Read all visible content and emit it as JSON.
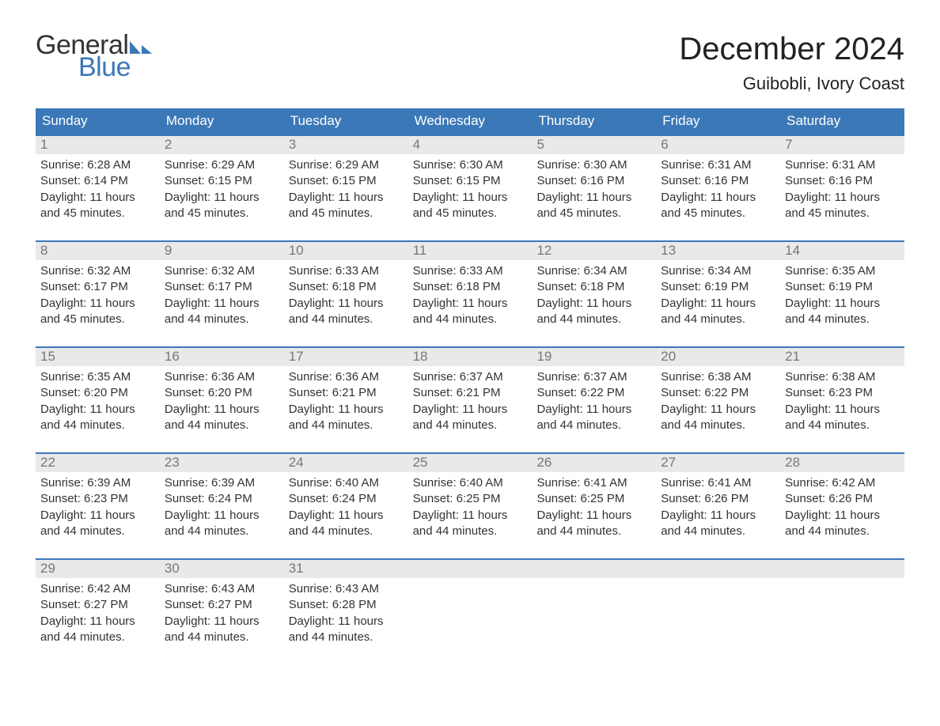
{
  "logo": {
    "general": "General",
    "blue": "Blue",
    "shape_color": "#3b78b8"
  },
  "title": "December 2024",
  "location": "Guibobli, Ivory Coast",
  "colors": {
    "header_bg": "#3b78b8",
    "header_text": "#ffffff",
    "daynum_bg": "#e9e9e9",
    "daynum_text": "#777777",
    "body_text": "#333333",
    "week_border": "#3b78b8",
    "page_bg": "#ffffff"
  },
  "typography": {
    "title_fontsize": 40,
    "location_fontsize": 22,
    "dow_fontsize": 17,
    "daynum_fontsize": 17,
    "body_fontsize": 15,
    "logo_fontsize": 34
  },
  "days_of_week": [
    "Sunday",
    "Monday",
    "Tuesday",
    "Wednesday",
    "Thursday",
    "Friday",
    "Saturday"
  ],
  "weeks": [
    [
      {
        "n": "1",
        "sunrise": "Sunrise: 6:28 AM",
        "sunset": "Sunset: 6:14 PM",
        "d1": "Daylight: 11 hours",
        "d2": "and 45 minutes."
      },
      {
        "n": "2",
        "sunrise": "Sunrise: 6:29 AM",
        "sunset": "Sunset: 6:15 PM",
        "d1": "Daylight: 11 hours",
        "d2": "and 45 minutes."
      },
      {
        "n": "3",
        "sunrise": "Sunrise: 6:29 AM",
        "sunset": "Sunset: 6:15 PM",
        "d1": "Daylight: 11 hours",
        "d2": "and 45 minutes."
      },
      {
        "n": "4",
        "sunrise": "Sunrise: 6:30 AM",
        "sunset": "Sunset: 6:15 PM",
        "d1": "Daylight: 11 hours",
        "d2": "and 45 minutes."
      },
      {
        "n": "5",
        "sunrise": "Sunrise: 6:30 AM",
        "sunset": "Sunset: 6:16 PM",
        "d1": "Daylight: 11 hours",
        "d2": "and 45 minutes."
      },
      {
        "n": "6",
        "sunrise": "Sunrise: 6:31 AM",
        "sunset": "Sunset: 6:16 PM",
        "d1": "Daylight: 11 hours",
        "d2": "and 45 minutes."
      },
      {
        "n": "7",
        "sunrise": "Sunrise: 6:31 AM",
        "sunset": "Sunset: 6:16 PM",
        "d1": "Daylight: 11 hours",
        "d2": "and 45 minutes."
      }
    ],
    [
      {
        "n": "8",
        "sunrise": "Sunrise: 6:32 AM",
        "sunset": "Sunset: 6:17 PM",
        "d1": "Daylight: 11 hours",
        "d2": "and 45 minutes."
      },
      {
        "n": "9",
        "sunrise": "Sunrise: 6:32 AM",
        "sunset": "Sunset: 6:17 PM",
        "d1": "Daylight: 11 hours",
        "d2": "and 44 minutes."
      },
      {
        "n": "10",
        "sunrise": "Sunrise: 6:33 AM",
        "sunset": "Sunset: 6:18 PM",
        "d1": "Daylight: 11 hours",
        "d2": "and 44 minutes."
      },
      {
        "n": "11",
        "sunrise": "Sunrise: 6:33 AM",
        "sunset": "Sunset: 6:18 PM",
        "d1": "Daylight: 11 hours",
        "d2": "and 44 minutes."
      },
      {
        "n": "12",
        "sunrise": "Sunrise: 6:34 AM",
        "sunset": "Sunset: 6:18 PM",
        "d1": "Daylight: 11 hours",
        "d2": "and 44 minutes."
      },
      {
        "n": "13",
        "sunrise": "Sunrise: 6:34 AM",
        "sunset": "Sunset: 6:19 PM",
        "d1": "Daylight: 11 hours",
        "d2": "and 44 minutes."
      },
      {
        "n": "14",
        "sunrise": "Sunrise: 6:35 AM",
        "sunset": "Sunset: 6:19 PM",
        "d1": "Daylight: 11 hours",
        "d2": "and 44 minutes."
      }
    ],
    [
      {
        "n": "15",
        "sunrise": "Sunrise: 6:35 AM",
        "sunset": "Sunset: 6:20 PM",
        "d1": "Daylight: 11 hours",
        "d2": "and 44 minutes."
      },
      {
        "n": "16",
        "sunrise": "Sunrise: 6:36 AM",
        "sunset": "Sunset: 6:20 PM",
        "d1": "Daylight: 11 hours",
        "d2": "and 44 minutes."
      },
      {
        "n": "17",
        "sunrise": "Sunrise: 6:36 AM",
        "sunset": "Sunset: 6:21 PM",
        "d1": "Daylight: 11 hours",
        "d2": "and 44 minutes."
      },
      {
        "n": "18",
        "sunrise": "Sunrise: 6:37 AM",
        "sunset": "Sunset: 6:21 PM",
        "d1": "Daylight: 11 hours",
        "d2": "and 44 minutes."
      },
      {
        "n": "19",
        "sunrise": "Sunrise: 6:37 AM",
        "sunset": "Sunset: 6:22 PM",
        "d1": "Daylight: 11 hours",
        "d2": "and 44 minutes."
      },
      {
        "n": "20",
        "sunrise": "Sunrise: 6:38 AM",
        "sunset": "Sunset: 6:22 PM",
        "d1": "Daylight: 11 hours",
        "d2": "and 44 minutes."
      },
      {
        "n": "21",
        "sunrise": "Sunrise: 6:38 AM",
        "sunset": "Sunset: 6:23 PM",
        "d1": "Daylight: 11 hours",
        "d2": "and 44 minutes."
      }
    ],
    [
      {
        "n": "22",
        "sunrise": "Sunrise: 6:39 AM",
        "sunset": "Sunset: 6:23 PM",
        "d1": "Daylight: 11 hours",
        "d2": "and 44 minutes."
      },
      {
        "n": "23",
        "sunrise": "Sunrise: 6:39 AM",
        "sunset": "Sunset: 6:24 PM",
        "d1": "Daylight: 11 hours",
        "d2": "and 44 minutes."
      },
      {
        "n": "24",
        "sunrise": "Sunrise: 6:40 AM",
        "sunset": "Sunset: 6:24 PM",
        "d1": "Daylight: 11 hours",
        "d2": "and 44 minutes."
      },
      {
        "n": "25",
        "sunrise": "Sunrise: 6:40 AM",
        "sunset": "Sunset: 6:25 PM",
        "d1": "Daylight: 11 hours",
        "d2": "and 44 minutes."
      },
      {
        "n": "26",
        "sunrise": "Sunrise: 6:41 AM",
        "sunset": "Sunset: 6:25 PM",
        "d1": "Daylight: 11 hours",
        "d2": "and 44 minutes."
      },
      {
        "n": "27",
        "sunrise": "Sunrise: 6:41 AM",
        "sunset": "Sunset: 6:26 PM",
        "d1": "Daylight: 11 hours",
        "d2": "and 44 minutes."
      },
      {
        "n": "28",
        "sunrise": "Sunrise: 6:42 AM",
        "sunset": "Sunset: 6:26 PM",
        "d1": "Daylight: 11 hours",
        "d2": "and 44 minutes."
      }
    ],
    [
      {
        "n": "29",
        "sunrise": "Sunrise: 6:42 AM",
        "sunset": "Sunset: 6:27 PM",
        "d1": "Daylight: 11 hours",
        "d2": "and 44 minutes."
      },
      {
        "n": "30",
        "sunrise": "Sunrise: 6:43 AM",
        "sunset": "Sunset: 6:27 PM",
        "d1": "Daylight: 11 hours",
        "d2": "and 44 minutes."
      },
      {
        "n": "31",
        "sunrise": "Sunrise: 6:43 AM",
        "sunset": "Sunset: 6:28 PM",
        "d1": "Daylight: 11 hours",
        "d2": "and 44 minutes."
      },
      {
        "empty": true
      },
      {
        "empty": true
      },
      {
        "empty": true
      },
      {
        "empty": true
      }
    ]
  ]
}
